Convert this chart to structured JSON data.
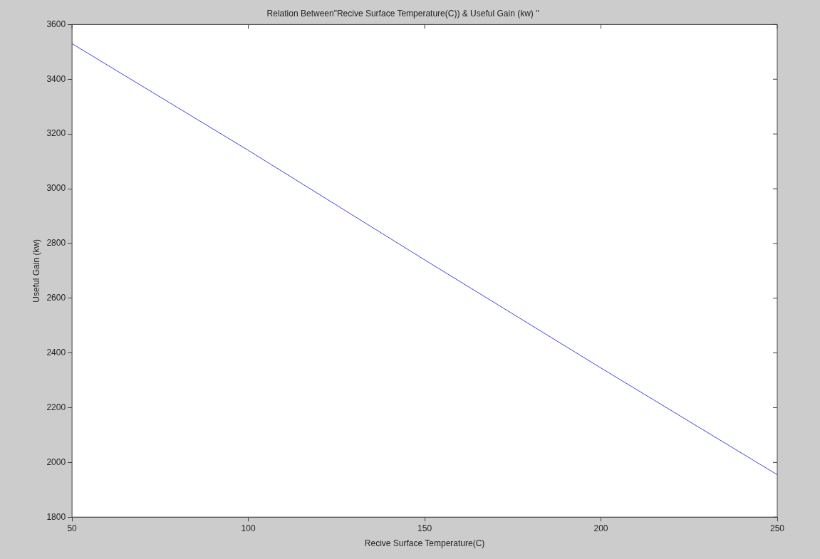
{
  "chart_data": {
    "type": "line",
    "title": "Relation Between\"Recive Surface Temperature(C)) & Useful Gain (kw) \"",
    "xlabel": "Recive Surface Temperature(C)",
    "ylabel": "Useful Gain (kw)",
    "x": [
      50,
      100,
      150,
      200,
      250
    ],
    "series": [
      {
        "color": "#4040e0",
        "values": [
          3530,
          3140,
          2740,
          2345,
          1955
        ]
      }
    ],
    "xlim": [
      50,
      250
    ],
    "xticks": [
      50,
      100,
      150,
      200,
      250
    ],
    "ylim": [
      1800,
      3600
    ],
    "yticks": [
      1800,
      2000,
      2200,
      2400,
      2600,
      2800,
      3000,
      3200,
      3400,
      3600
    ],
    "grid": false,
    "legend": false,
    "marker": "none"
  }
}
